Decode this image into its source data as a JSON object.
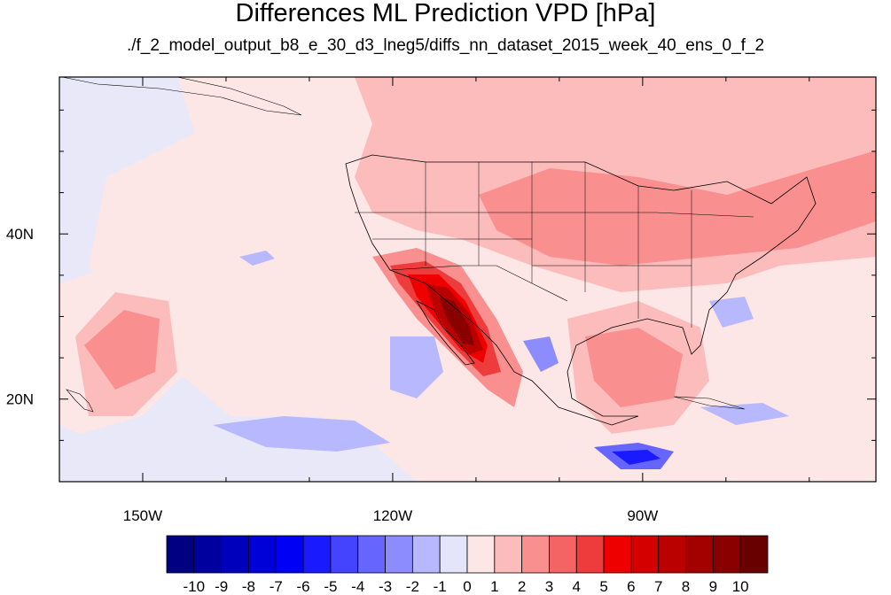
{
  "title": "Differences ML Prediction VPD [hPa]",
  "subtitle": "./f_2_model_output_b8_e_30_d3_lneg5/diffs_nn_dataset_2015_week_40_ens_0_f_2",
  "map": {
    "projection": "cylindrical-equidistant",
    "lon_range": [
      -160,
      -62
    ],
    "lat_range": [
      10,
      59
    ],
    "lon_labels": [
      {
        "lon": -150,
        "text": "150W"
      },
      {
        "lon": -120,
        "text": "120W"
      },
      {
        "lon": -90,
        "text": "90W"
      }
    ],
    "lat_labels": [
      {
        "lat": 40,
        "text": "40N"
      },
      {
        "lat": 20,
        "text": "20N"
      }
    ],
    "features": [
      {
        "name": "central-california-baja-peak",
        "value": 10,
        "description_region": "Baja California / Gulf of California"
      },
      {
        "name": "central-us-positive-band",
        "value": 4
      },
      {
        "name": "caribbean-negative-patch",
        "value": -4
      },
      {
        "name": "east-pacific-negative-patch",
        "value": -2
      },
      {
        "name": "hawaii-positive-patch",
        "value": 3
      }
    ]
  },
  "colorbar": {
    "labels": [
      "-10",
      "-9",
      "-8",
      "-7",
      "-6",
      "-5",
      "-4",
      "-3",
      "-2",
      "-1",
      "0",
      "1",
      "2",
      "3",
      "4",
      "5",
      "6",
      "7",
      "8",
      "9",
      "10"
    ],
    "colors": [
      "#000080",
      "#00009e",
      "#0000bc",
      "#0000d9",
      "#0000f5",
      "#1a1aff",
      "#4444ff",
      "#6666ff",
      "#8c8cff",
      "#b8b8ff",
      "#e4e4fb",
      "#fde6e6",
      "#fcbcbc",
      "#f98f8f",
      "#f46464",
      "#ee3c3c",
      "#ee0000",
      "#d40000",
      "#bb0000",
      "#a30000",
      "#8a0000",
      "#680000"
    ]
  }
}
